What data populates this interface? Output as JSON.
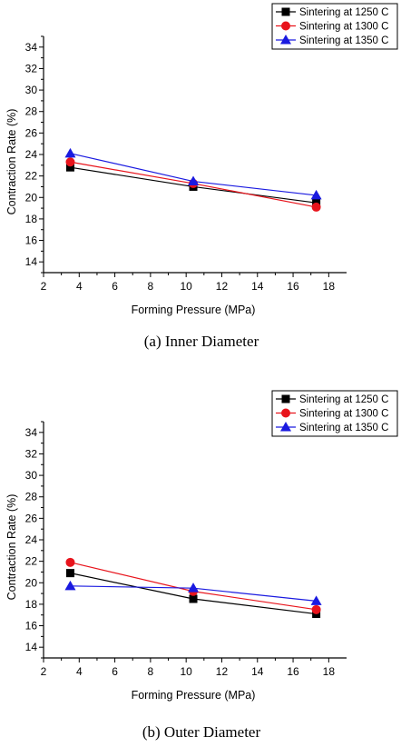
{
  "chart_data": [
    {
      "type": "line",
      "caption": "(a)  Inner  Diameter",
      "xlabel": "Forming Pressure (MPa)",
      "ylabel": "Contraction Rate (%)",
      "xlim": [
        2,
        19
      ],
      "ylim": [
        13,
        35
      ],
      "xticks": [
        "2",
        "4",
        "6",
        "8",
        "10",
        "12",
        "14",
        "16",
        "18"
      ],
      "yticks": [
        "14",
        "16",
        "18",
        "20",
        "22",
        "24",
        "26",
        "28",
        "30",
        "32",
        "34"
      ],
      "legend_position": "top-right",
      "series": [
        {
          "name": "Sintering at 1250 C",
          "marker": "square",
          "color": "#000000",
          "x": [
            3.5,
            10.4,
            17.3
          ],
          "y": [
            22.8,
            21.0,
            19.5
          ]
        },
        {
          "name": "Sintering at 1300 C",
          "marker": "circle",
          "color": "#e8141c",
          "x": [
            3.5,
            10.4,
            17.3
          ],
          "y": [
            23.3,
            21.3,
            19.1
          ]
        },
        {
          "name": "Sintering at 1350 C",
          "marker": "triangle",
          "color": "#1a1ae0",
          "x": [
            3.5,
            10.4,
            17.3
          ],
          "y": [
            24.1,
            21.5,
            20.2
          ]
        }
      ]
    },
    {
      "type": "line",
      "caption": "(b)  Outer  Diameter",
      "xlabel": "Forming Pressure (MPa)",
      "ylabel": "Contraction Rate (%)",
      "xlim": [
        2,
        19
      ],
      "ylim": [
        13,
        35
      ],
      "xticks": [
        "2",
        "4",
        "6",
        "8",
        "10",
        "12",
        "14",
        "16",
        "18"
      ],
      "yticks": [
        "14",
        "16",
        "18",
        "20",
        "22",
        "24",
        "26",
        "28",
        "30",
        "32",
        "34"
      ],
      "legend_position": "top-right",
      "series": [
        {
          "name": "Sintering at 1250 C",
          "marker": "square",
          "color": "#000000",
          "x": [
            3.5,
            10.4,
            17.3
          ],
          "y": [
            20.9,
            18.5,
            17.1
          ]
        },
        {
          "name": "Sintering at 1300 C",
          "marker": "circle",
          "color": "#e8141c",
          "x": [
            3.5,
            10.4,
            17.3
          ],
          "y": [
            21.9,
            19.2,
            17.5
          ]
        },
        {
          "name": "Sintering at 1350 C",
          "marker": "triangle",
          "color": "#1a1ae0",
          "x": [
            3.5,
            10.4,
            17.3
          ],
          "y": [
            19.7,
            19.5,
            18.3
          ]
        }
      ]
    }
  ]
}
